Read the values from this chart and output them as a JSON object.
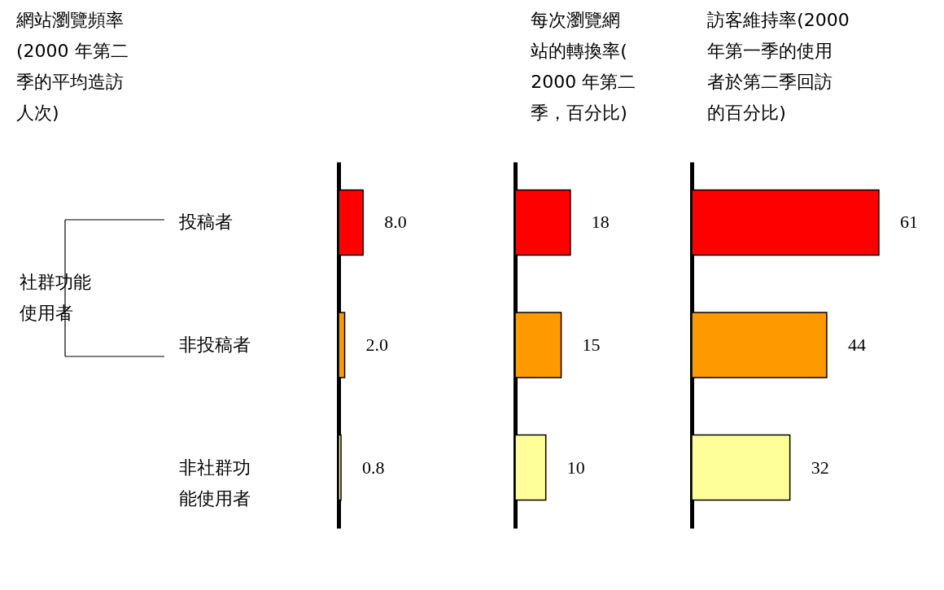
{
  "chart_data": [
    {
      "type": "bar",
      "orientation": "horizontal",
      "title": "網站瀏覽頻率(2000 年第二季的平均造訪人次)",
      "categories": [
        "投稿者",
        "非投稿者",
        "非社群功能使用者"
      ],
      "values": [
        8.0,
        2.0,
        0.8
      ],
      "value_labels": [
        "8.0",
        "2.0",
        "0.8"
      ],
      "colors": [
        "#ff0000",
        "#ff9900",
        "#ffff99"
      ],
      "annotations": [
        "社群功能使用者"
      ]
    },
    {
      "type": "bar",
      "orientation": "horizontal",
      "title": "每次瀏覽網站的轉換率(2000 年第二季，百分比)",
      "categories": [
        "投稿者",
        "非投稿者",
        "非社群功能使用者"
      ],
      "values": [
        18,
        15,
        10
      ],
      "data_labels": true,
      "colors": [
        "#ff0000",
        "#ff9900",
        "#ffff99"
      ],
      "tick_labels": false
    },
    {
      "type": "bar",
      "orientation": "horizontal",
      "title": "訪客維持率(2000 年第一季的使用者於第二季回訪的百分比)",
      "categories": [
        "投稿者",
        "非投稿者",
        "非社群功能使用者"
      ],
      "values": [
        61,
        44,
        32
      ],
      "data_labels": true,
      "colors": [
        "#ff0000",
        "#ff9900",
        "#ffff99"
      ],
      "tick_labels": false
    }
  ]
}
